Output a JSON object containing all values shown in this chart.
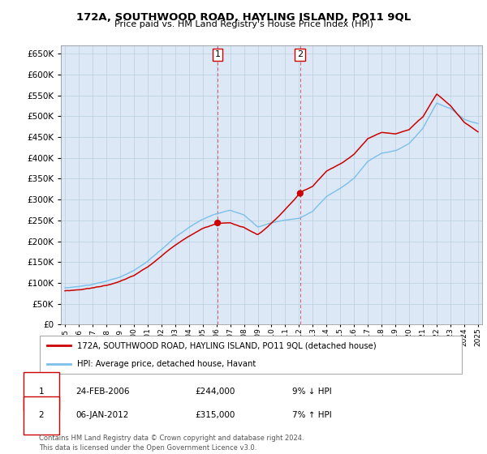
{
  "title": "172A, SOUTHWOOD ROAD, HAYLING ISLAND, PO11 9QL",
  "subtitle": "Price paid vs. HM Land Registry's House Price Index (HPI)",
  "ylim": [
    0,
    670000
  ],
  "yticks": [
    0,
    50000,
    100000,
    150000,
    200000,
    250000,
    300000,
    350000,
    400000,
    450000,
    500000,
    550000,
    600000,
    650000
  ],
  "hpi_color": "#7bbfea",
  "price_color": "#cc0000",
  "t1_year": 2006.125,
  "t2_year": 2012.042,
  "t1_price": 244000,
  "t2_price": 315000,
  "legend1_text": "172A, SOUTHWOOD ROAD, HAYLING ISLAND, PO11 9QL (detached house)",
  "legend2_text": "HPI: Average price, detached house, Havant",
  "table_row1": [
    "1",
    "24-FEB-2006",
    "£244,000",
    "9% ↓ HPI"
  ],
  "table_row2": [
    "2",
    "06-JAN-2012",
    "£315,000",
    "7% ↑ HPI"
  ],
  "footer": "Contains HM Land Registry data © Crown copyright and database right 2024.\nThis data is licensed under the Open Government Licence v3.0.",
  "chart_bg": "#dce8f5",
  "grid_color": "#b8cfe0",
  "hpi_anchors_t": [
    1995,
    1996,
    1997,
    1998,
    1999,
    2000,
    2001,
    2002,
    2003,
    2004,
    2005,
    2006,
    2007,
    2008,
    2009,
    2010,
    2011,
    2012,
    2013,
    2014,
    2015,
    2016,
    2017,
    2018,
    2019,
    2020,
    2021,
    2022,
    2023,
    2024,
    2025
  ],
  "hpi_anchors_v": [
    88000,
    91000,
    96000,
    103000,
    113000,
    128000,
    150000,
    178000,
    208000,
    232000,
    252000,
    264000,
    272000,
    260000,
    232000,
    242000,
    248000,
    252000,
    270000,
    305000,
    325000,
    350000,
    390000,
    410000,
    415000,
    432000,
    468000,
    528000,
    515000,
    488000,
    478000
  ],
  "xlim_left": 1994.7,
  "xlim_right": 2025.3
}
